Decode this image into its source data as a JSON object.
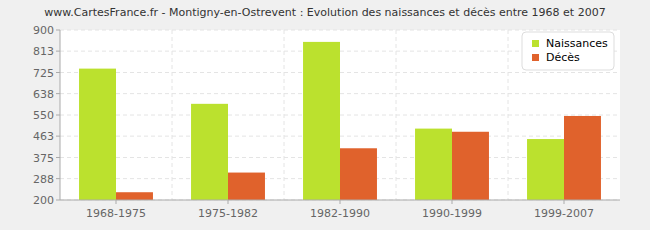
{
  "chart_data": {
    "type": "bar",
    "title": "www.CartesFrance.fr - Montigny-en-Ostrevent : Evolution des naissances et décès entre 1968 et 2007",
    "categories": [
      "1968-1975",
      "1975-1982",
      "1982-1990",
      "1990-1999",
      "1999-2007"
    ],
    "series": [
      {
        "name": "Naissances",
        "color": "#bbe12e",
        "values": [
          741,
          596,
          851,
          494,
          451
        ]
      },
      {
        "name": "Décès",
        "color": "#e0622c",
        "values": [
          232,
          313,
          413,
          481,
          546
        ]
      }
    ],
    "ylim": [
      200,
      900
    ],
    "yticks": [
      200,
      288,
      375,
      463,
      550,
      638,
      725,
      813,
      900
    ],
    "grid": true,
    "legend": "top-right"
  }
}
